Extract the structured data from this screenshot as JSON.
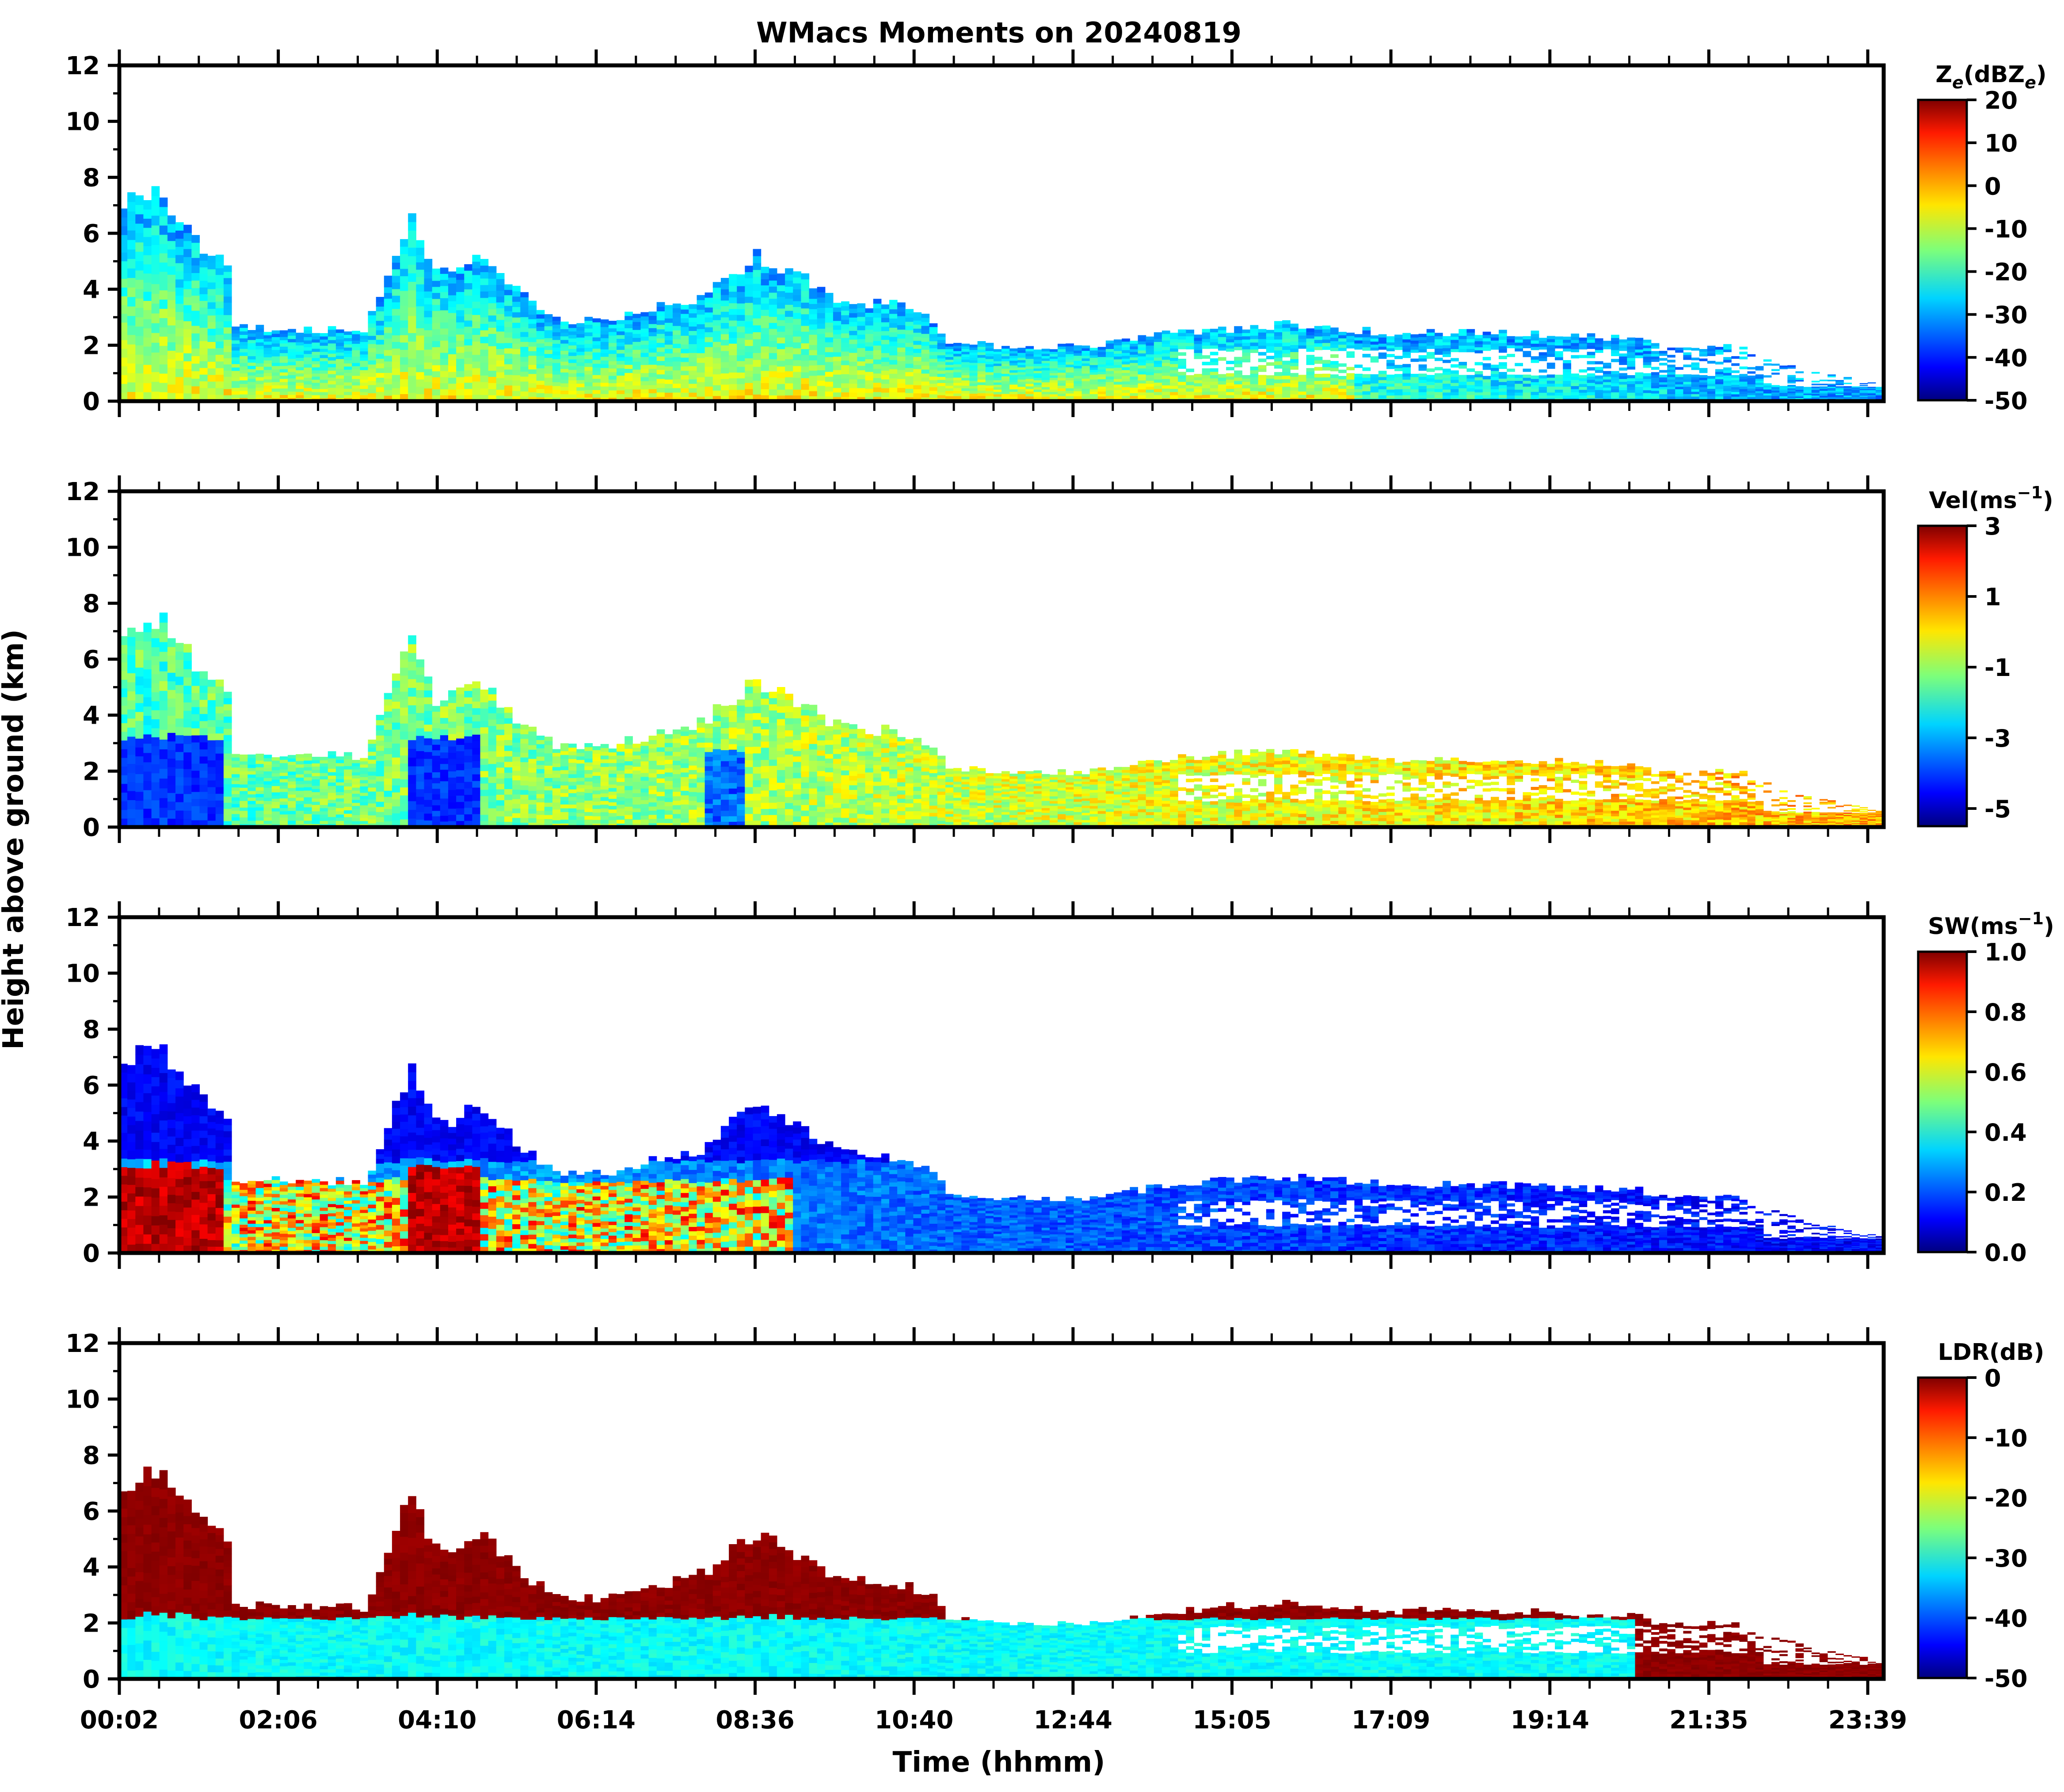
{
  "figure": {
    "title": "WMacs Moments on 20240819",
    "ylabel": "Height above ground (km)",
    "xlabel": "Time (hhmm)",
    "x_tick_labels": [
      "00:02",
      "02:06",
      "04:10",
      "06:14",
      "08:36",
      "10:40",
      "12:44",
      "15:05",
      "17:09",
      "19:14",
      "21:35",
      "23:39"
    ],
    "y_tick_labels": [
      "0",
      "2",
      "4",
      "6",
      "8",
      "10",
      "12"
    ]
  },
  "chart_data": [
    {
      "type": "heatmap",
      "panel": "reflectivity",
      "colorbar_label": "Ze(dBZe)",
      "colorbar_base": "Z",
      "colorbar_sub1": "e",
      "colorbar_mid": "(dBZ",
      "colorbar_sub2": "e",
      "colorbar_end": ")",
      "colorbar_ticks": [
        "20",
        "10",
        "0",
        "-10",
        "-20",
        "-30",
        "-40",
        "-50"
      ],
      "vmin": -50,
      "vmax": 20,
      "ylim": [
        0,
        12
      ],
      "x_range": [
        "00:02",
        "23:39"
      ],
      "description_values": {
        "cloud_top_km_start": 7.2,
        "cloud_top_km_end": 0.6
      }
    },
    {
      "type": "heatmap",
      "panel": "velocity",
      "colorbar_label": "Vel(ms-1)",
      "colorbar_base": "Vel(ms",
      "colorbar_sup": "−1",
      "colorbar_end": ")",
      "colorbar_ticks": [
        "3",
        "1",
        "-1",
        "-3",
        "-5"
      ],
      "vmin": -5.5,
      "vmax": 3,
      "ylim": [
        0,
        12
      ]
    },
    {
      "type": "heatmap",
      "panel": "spectrum_width",
      "colorbar_label": "SW(ms-1)",
      "colorbar_base": "SW(ms",
      "colorbar_sup": "−1",
      "colorbar_end": ")",
      "colorbar_ticks": [
        "1.0",
        "0.8",
        "0.6",
        "0.4",
        "0.2",
        "0.0"
      ],
      "vmin": 0,
      "vmax": 1,
      "ylim": [
        0,
        12
      ]
    },
    {
      "type": "heatmap",
      "panel": "ldr",
      "colorbar_label": "LDR(dB)",
      "colorbar_base": "LDR(dB)",
      "colorbar_ticks": [
        "0",
        "-10",
        "-20",
        "-30",
        "-40",
        "-50"
      ],
      "vmin": -50,
      "vmax": 0,
      "ylim": [
        0,
        12
      ]
    }
  ]
}
